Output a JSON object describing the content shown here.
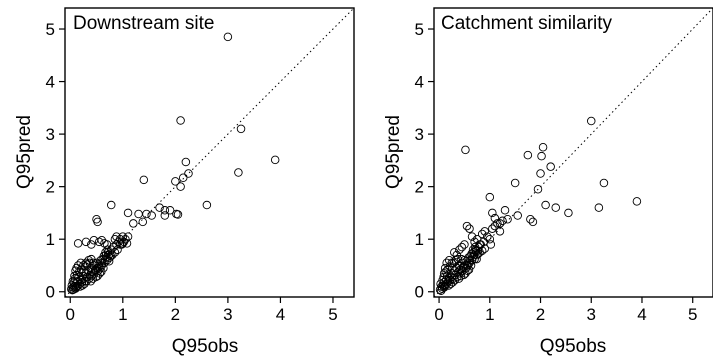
{
  "chart_data": [
    {
      "type": "scatter",
      "title": "Downstream site",
      "xlabel": "Q95obs",
      "ylabel": "Q95pred",
      "xlim": [
        -0.1,
        5.4
      ],
      "ylim": [
        -0.1,
        5.4
      ],
      "xticks": [
        "0",
        "1",
        "2",
        "3",
        "4",
        "5"
      ],
      "yticks": [
        "0",
        "1",
        "2",
        "3",
        "4",
        "5"
      ],
      "reference_line": "1:1 dotted",
      "marker": "open circle",
      "grid": false,
      "series": [
        {
          "points": [
            [
              0.02,
              0.05
            ],
            [
              0.04,
              0.03
            ],
            [
              0.05,
              0.08
            ],
            [
              0.06,
              0.04
            ],
            [
              0.08,
              0.1
            ],
            [
              0.1,
              0.06
            ],
            [
              0.1,
              0.15
            ],
            [
              0.12,
              0.1
            ],
            [
              0.14,
              0.2
            ],
            [
              0.15,
              0.12
            ],
            [
              0.16,
              0.28
            ],
            [
              0.18,
              0.15
            ],
            [
              0.2,
              0.22
            ],
            [
              0.22,
              0.18
            ],
            [
              0.24,
              0.3
            ],
            [
              0.25,
              0.25
            ],
            [
              0.28,
              0.2
            ],
            [
              0.3,
              0.35
            ],
            [
              0.32,
              0.28
            ],
            [
              0.35,
              0.4
            ],
            [
              0.38,
              0.32
            ],
            [
              0.4,
              0.45
            ],
            [
              0.42,
              0.38
            ],
            [
              0.45,
              0.5
            ],
            [
              0.48,
              0.42
            ],
            [
              0.5,
              0.55
            ],
            [
              0.52,
              0.3
            ],
            [
              0.55,
              0.48
            ],
            [
              0.58,
              0.6
            ],
            [
              0.6,
              0.5
            ],
            [
              0.62,
              0.62
            ],
            [
              0.65,
              0.55
            ],
            [
              0.68,
              0.7
            ],
            [
              0.7,
              0.6
            ],
            [
              0.72,
              0.75
            ],
            [
              0.75,
              0.65
            ],
            [
              0.78,
              0.8
            ],
            [
              0.8,
              0.7
            ],
            [
              0.82,
              0.85
            ],
            [
              0.85,
              0.75
            ],
            [
              0.88,
              0.9
            ],
            [
              0.9,
              0.8
            ],
            [
              0.92,
              0.95
            ],
            [
              0.95,
              1.0
            ],
            [
              0.98,
              0.9
            ],
            [
              1.0,
              1.05
            ],
            [
              1.02,
              0.95
            ],
            [
              1.05,
              1.0
            ],
            [
              1.08,
              0.92
            ],
            [
              1.1,
              1.05
            ],
            [
              0.05,
              0.2
            ],
            [
              0.08,
              0.3
            ],
            [
              0.1,
              0.4
            ],
            [
              0.12,
              0.45
            ],
            [
              0.15,
              0.5
            ],
            [
              0.2,
              0.55
            ],
            [
              0.25,
              0.5
            ],
            [
              0.3,
              0.55
            ],
            [
              0.35,
              0.6
            ],
            [
              0.4,
              0.62
            ],
            [
              0.15,
              0.92
            ],
            [
              0.3,
              0.95
            ],
            [
              0.4,
              0.9
            ],
            [
              0.45,
              0.98
            ],
            [
              0.5,
              1.38
            ],
            [
              0.52,
              1.33
            ],
            [
              0.55,
              0.95
            ],
            [
              0.6,
              0.98
            ],
            [
              0.65,
              0.92
            ],
            [
              0.7,
              0.9
            ],
            [
              0.78,
              1.65
            ],
            [
              0.85,
              1.0
            ],
            [
              0.88,
              1.05
            ],
            [
              0.95,
              0.9
            ],
            [
              1.0,
              0.92
            ],
            [
              1.1,
              1.5
            ],
            [
              1.2,
              1.3
            ],
            [
              1.3,
              1.48
            ],
            [
              1.38,
              1.33
            ],
            [
              1.4,
              2.13
            ],
            [
              1.45,
              1.48
            ],
            [
              1.55,
              1.45
            ],
            [
              1.7,
              1.6
            ],
            [
              1.8,
              1.45
            ],
            [
              1.8,
              1.55
            ],
            [
              1.9,
              1.55
            ],
            [
              2.0,
              2.1
            ],
            [
              2.02,
              1.48
            ],
            [
              2.05,
              1.47
            ],
            [
              2.1,
              2.0
            ],
            [
              2.1,
              3.26
            ],
            [
              2.15,
              2.17
            ],
            [
              2.2,
              2.47
            ],
            [
              2.25,
              2.25
            ],
            [
              2.6,
              1.65
            ],
            [
              3.0,
              4.85
            ],
            [
              3.2,
              2.27
            ],
            [
              3.25,
              3.1
            ],
            [
              3.9,
              2.51
            ],
            [
              0.03,
              0.12
            ],
            [
              0.07,
              0.18
            ],
            [
              0.09,
              0.25
            ],
            [
              0.11,
              0.08
            ],
            [
              0.13,
              0.32
            ],
            [
              0.17,
              0.38
            ],
            [
              0.19,
              0.1
            ],
            [
              0.21,
              0.42
            ],
            [
              0.23,
              0.12
            ],
            [
              0.26,
              0.38
            ],
            [
              0.27,
              0.15
            ],
            [
              0.29,
              0.48
            ],
            [
              0.31,
              0.2
            ],
            [
              0.33,
              0.52
            ],
            [
              0.36,
              0.25
            ],
            [
              0.37,
              0.55
            ],
            [
              0.39,
              0.2
            ],
            [
              0.41,
              0.3
            ],
            [
              0.43,
              0.25
            ],
            [
              0.44,
              0.55
            ],
            [
              0.46,
              0.35
            ],
            [
              0.47,
              0.4
            ],
            [
              0.49,
              0.28
            ],
            [
              0.51,
              0.45
            ],
            [
              0.53,
              0.4
            ],
            [
              0.54,
              0.52
            ],
            [
              0.56,
              0.35
            ],
            [
              0.57,
              0.45
            ],
            [
              0.59,
              0.38
            ],
            [
              0.61,
              0.55
            ],
            [
              0.63,
              0.45
            ],
            [
              0.64,
              0.68
            ],
            [
              0.66,
              0.6
            ],
            [
              0.67,
              0.75
            ],
            [
              0.69,
              0.65
            ],
            [
              0.71,
              0.8
            ],
            [
              0.73,
              0.7
            ],
            [
              0.74,
              0.58
            ],
            [
              0.76,
              0.72
            ],
            [
              0.77,
              0.68
            ]
          ]
        }
      ]
    },
    {
      "type": "scatter",
      "title": "Catchment similarity",
      "xlabel": "Q95obs",
      "ylabel": "Q95pred",
      "xlim": [
        -0.1,
        5.4
      ],
      "ylim": [
        -0.1,
        5.4
      ],
      "xticks": [
        "0",
        "1",
        "2",
        "3",
        "4",
        "5"
      ],
      "yticks": [
        "0",
        "1",
        "2",
        "3",
        "4",
        "5"
      ],
      "reference_line": "1:1 dotted",
      "marker": "open circle",
      "grid": false,
      "series": [
        {
          "points": [
            [
              0.02,
              0.04
            ],
            [
              0.04,
              0.02
            ],
            [
              0.05,
              0.1
            ],
            [
              0.06,
              0.06
            ],
            [
              0.08,
              0.12
            ],
            [
              0.1,
              0.08
            ],
            [
              0.1,
              0.18
            ],
            [
              0.12,
              0.12
            ],
            [
              0.14,
              0.22
            ],
            [
              0.15,
              0.15
            ],
            [
              0.16,
              0.3
            ],
            [
              0.18,
              0.2
            ],
            [
              0.2,
              0.25
            ],
            [
              0.22,
              0.22
            ],
            [
              0.24,
              0.35
            ],
            [
              0.25,
              0.28
            ],
            [
              0.28,
              0.25
            ],
            [
              0.3,
              0.4
            ],
            [
              0.32,
              0.32
            ],
            [
              0.35,
              0.45
            ],
            [
              0.38,
              0.38
            ],
            [
              0.4,
              0.5
            ],
            [
              0.42,
              0.42
            ],
            [
              0.45,
              0.55
            ],
            [
              0.48,
              0.48
            ],
            [
              0.5,
              0.6
            ],
            [
              0.52,
              0.35
            ],
            [
              0.55,
              0.5
            ],
            [
              0.58,
              0.65
            ],
            [
              0.6,
              0.55
            ],
            [
              0.62,
              0.68
            ],
            [
              0.65,
              0.6
            ],
            [
              0.68,
              0.75
            ],
            [
              0.7,
              0.62
            ],
            [
              0.72,
              0.8
            ],
            [
              0.75,
              0.7
            ],
            [
              0.78,
              0.85
            ],
            [
              0.8,
              0.75
            ],
            [
              0.82,
              0.9
            ],
            [
              0.85,
              0.78
            ],
            [
              0.88,
              0.95
            ],
            [
              0.9,
              0.82
            ],
            [
              0.95,
              1.05
            ],
            [
              1.0,
              1.0
            ],
            [
              1.02,
              0.9
            ],
            [
              1.05,
              1.2
            ],
            [
              1.1,
              1.25
            ],
            [
              1.15,
              1.3
            ],
            [
              1.2,
              1.15
            ],
            [
              1.25,
              1.35
            ],
            [
              0.1,
              0.35
            ],
            [
              0.12,
              0.45
            ],
            [
              0.15,
              0.55
            ],
            [
              0.2,
              0.6
            ],
            [
              0.25,
              0.55
            ],
            [
              0.3,
              0.75
            ],
            [
              0.35,
              0.7
            ],
            [
              0.4,
              0.8
            ],
            [
              0.45,
              0.85
            ],
            [
              0.5,
              0.9
            ],
            [
              0.52,
              2.7
            ],
            [
              0.55,
              1.25
            ],
            [
              0.6,
              1.2
            ],
            [
              0.65,
              1.05
            ],
            [
              0.7,
              0.95
            ],
            [
              0.75,
              1.0
            ],
            [
              0.8,
              0.9
            ],
            [
              0.85,
              1.1
            ],
            [
              0.9,
              1.15
            ],
            [
              1.0,
              1.8
            ],
            [
              1.05,
              1.5
            ],
            [
              1.1,
              1.4
            ],
            [
              1.2,
              1.3
            ],
            [
              1.3,
              1.55
            ],
            [
              1.35,
              1.38
            ],
            [
              1.5,
              2.07
            ],
            [
              1.55,
              1.45
            ],
            [
              1.75,
              2.6
            ],
            [
              1.8,
              1.38
            ],
            [
              1.85,
              1.33
            ],
            [
              1.95,
              1.95
            ],
            [
              2.0,
              2.25
            ],
            [
              2.02,
              2.58
            ],
            [
              2.05,
              2.75
            ],
            [
              2.1,
              1.65
            ],
            [
              2.2,
              2.38
            ],
            [
              2.3,
              1.6
            ],
            [
              2.55,
              1.5
            ],
            [
              3.0,
              3.25
            ],
            [
              3.15,
              1.6
            ],
            [
              3.25,
              2.07
            ],
            [
              3.9,
              1.72
            ],
            [
              0.03,
              0.15
            ],
            [
              0.07,
              0.22
            ],
            [
              0.09,
              0.28
            ],
            [
              0.11,
              0.1
            ],
            [
              0.13,
              0.38
            ],
            [
              0.17,
              0.42
            ],
            [
              0.19,
              0.12
            ],
            [
              0.21,
              0.48
            ],
            [
              0.23,
              0.15
            ],
            [
              0.26,
              0.45
            ],
            [
              0.27,
              0.18
            ],
            [
              0.29,
              0.55
            ],
            [
              0.31,
              0.22
            ],
            [
              0.33,
              0.6
            ],
            [
              0.36,
              0.28
            ],
            [
              0.37,
              0.62
            ],
            [
              0.39,
              0.25
            ],
            [
              0.41,
              0.35
            ],
            [
              0.43,
              0.3
            ],
            [
              0.44,
              0.62
            ],
            [
              0.46,
              0.4
            ],
            [
              0.47,
              0.45
            ],
            [
              0.49,
              0.32
            ],
            [
              0.51,
              0.5
            ],
            [
              0.53,
              0.45
            ],
            [
              0.54,
              0.58
            ],
            [
              0.56,
              0.4
            ],
            [
              0.57,
              0.5
            ],
            [
              0.59,
              0.42
            ],
            [
              0.61,
              0.6
            ],
            [
              0.63,
              0.5
            ],
            [
              0.64,
              0.72
            ],
            [
              0.66,
              0.65
            ],
            [
              0.67,
              0.8
            ],
            [
              0.69,
              0.7
            ],
            [
              0.71,
              0.85
            ],
            [
              0.73,
              0.78
            ],
            [
              0.74,
              0.62
            ],
            [
              0.76,
              0.78
            ],
            [
              0.77,
              0.72
            ]
          ]
        }
      ]
    }
  ]
}
